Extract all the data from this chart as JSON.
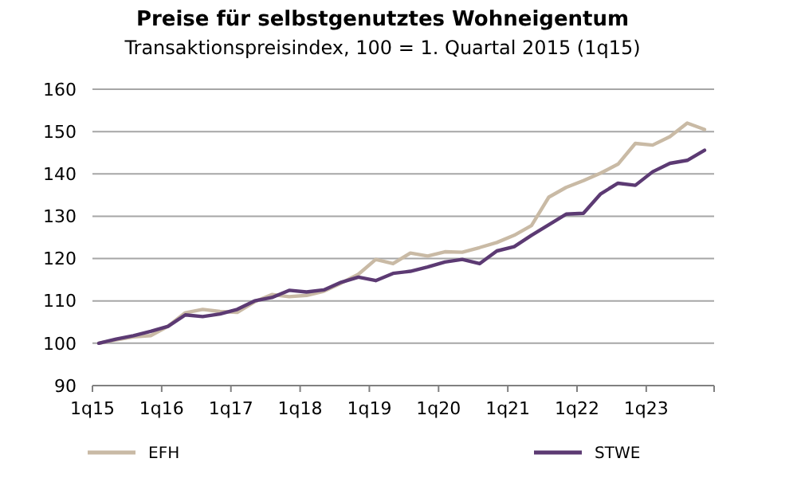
{
  "chart_data": {
    "type": "line",
    "title": "Preise für selbstgenutztes Wohneigentum",
    "subtitle": "Transaktionspreisindex, 100 = 1. Quartal 2015 (1q15)",
    "categories": [
      "1q15",
      null,
      null,
      null,
      "1q16",
      null,
      null,
      null,
      "1q17",
      null,
      null,
      null,
      "1q18",
      null,
      null,
      null,
      "1q19",
      null,
      null,
      null,
      "1q20",
      null,
      null,
      null,
      "1q21",
      null,
      null,
      null,
      "1q22",
      null,
      null,
      null,
      "1q23",
      null,
      null,
      null
    ],
    "series": [
      {
        "name": "EFH",
        "color": "#c9baa5",
        "values": [
          100,
          100.8,
          101.5,
          101.8,
          104,
          107.2,
          108,
          107.5,
          107.3,
          109.8,
          111.5,
          111,
          111.3,
          112.3,
          114.2,
          116.3,
          119.8,
          118.8,
          121.3,
          120.6,
          121.6,
          121.5,
          122.6,
          123.8,
          125.5,
          127.8,
          134.5,
          136.8,
          138.4,
          140.2,
          142.3,
          147.2,
          146.8,
          148.8,
          152,
          150.5
        ]
      },
      {
        "name": "STWE",
        "color": "#5c3a73",
        "values": [
          100,
          101,
          101.8,
          102.8,
          104,
          106.7,
          106.3,
          106.9,
          108,
          110,
          110.8,
          112.5,
          112.1,
          112.6,
          114.4,
          115.6,
          114.8,
          116.5,
          117,
          118,
          119.2,
          119.8,
          118.8,
          121.8,
          122.8,
          125.5,
          128,
          130.5,
          130.7,
          135.3,
          137.8,
          137.3,
          140.5,
          142.5,
          143.2,
          145.6
        ]
      }
    ],
    "ylim": [
      90,
      160
    ],
    "yticks": [
      90,
      100,
      110,
      120,
      130,
      140,
      150,
      160
    ],
    "grid": "y",
    "legend": "bottom",
    "marker": "none",
    "line_style": "solid"
  }
}
